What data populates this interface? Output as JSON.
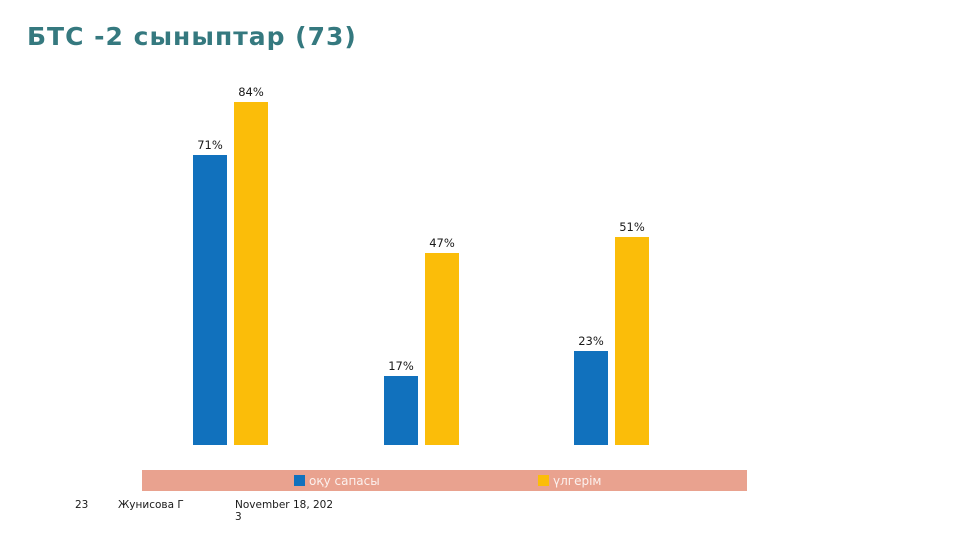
{
  "title": "БТС -2 сыныптар (73)",
  "chart_data": {
    "type": "bar",
    "title": "БТС -2 сыныптар (73)",
    "series": [
      {
        "name": "оқу сапасы",
        "color": "#1171BD",
        "values": [
          71,
          17,
          23
        ]
      },
      {
        "name": "үлгерім",
        "color": "#FBBD09",
        "values": [
          84,
          47,
          51
        ]
      }
    ],
    "value_suffix": "%",
    "ylim": [
      0,
      100
    ],
    "axes_visible": false,
    "gridlines": false,
    "data_labels": true,
    "legend_position": "bottom"
  },
  "legend": {
    "band_color": "#E9A28F"
  },
  "footer": {
    "slide_number": "23",
    "author": "Жунисова Г",
    "date": "November 18, 2023"
  },
  "colors": {
    "title_text": "#35797F",
    "data_label_text": "#1a1a1a",
    "legend_text": "#ffffff"
  }
}
